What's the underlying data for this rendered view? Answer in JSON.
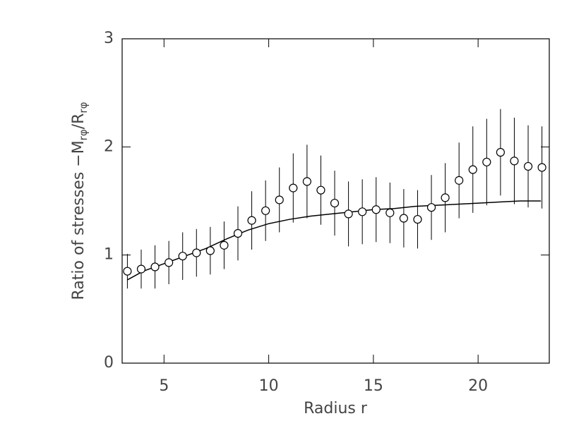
{
  "chart_data": {
    "type": "scatter",
    "x_label": "Radius r",
    "y_label": [
      "Ratio of stresses −M",
      "rφ",
      "/R",
      "rφ"
    ],
    "xlim": [
      3,
      23.4
    ],
    "xticks": [
      5,
      10,
      15,
      20
    ],
    "ylim": [
      0,
      3
    ],
    "yticks": [
      0,
      1,
      2,
      3
    ],
    "color": "#000000",
    "x": [
      3.25,
      3.91,
      4.57,
      5.23,
      5.89,
      6.55,
      7.21,
      7.87,
      8.53,
      9.19,
      9.85,
      10.51,
      11.17,
      11.83,
      12.49,
      13.15,
      13.81,
      14.47,
      15.13,
      15.79,
      16.45,
      17.11,
      17.77,
      18.43,
      19.09,
      19.75,
      20.41,
      21.07,
      21.73,
      22.39,
      23.05
    ],
    "values": [
      0.85,
      0.87,
      0.89,
      0.93,
      0.99,
      1.02,
      1.04,
      1.09,
      1.2,
      1.32,
      1.41,
      1.51,
      1.62,
      1.68,
      1.6,
      1.48,
      1.38,
      1.4,
      1.42,
      1.39,
      1.34,
      1.33,
      1.44,
      1.53,
      1.69,
      1.79,
      1.86,
      1.95,
      1.87,
      1.82,
      1.81
    ],
    "errors": [
      0.16,
      0.18,
      0.2,
      0.2,
      0.22,
      0.22,
      0.22,
      0.22,
      0.25,
      0.27,
      0.28,
      0.3,
      0.32,
      0.34,
      0.32,
      0.3,
      0.3,
      0.3,
      0.3,
      0.28,
      0.27,
      0.27,
      0.3,
      0.32,
      0.35,
      0.4,
      0.4,
      0.4,
      0.4,
      0.38,
      0.38
    ],
    "fit": {
      "x": [
        3.25,
        4,
        5,
        6,
        7,
        8,
        9,
        10,
        11,
        12,
        13,
        14,
        15,
        16,
        17,
        18,
        19,
        20,
        21,
        22,
        23
      ],
      "values": [
        0.77,
        0.85,
        0.92,
        0.99,
        1.06,
        1.15,
        1.23,
        1.29,
        1.33,
        1.36,
        1.38,
        1.4,
        1.42,
        1.43,
        1.45,
        1.46,
        1.47,
        1.48,
        1.49,
        1.5,
        1.5
      ]
    }
  }
}
